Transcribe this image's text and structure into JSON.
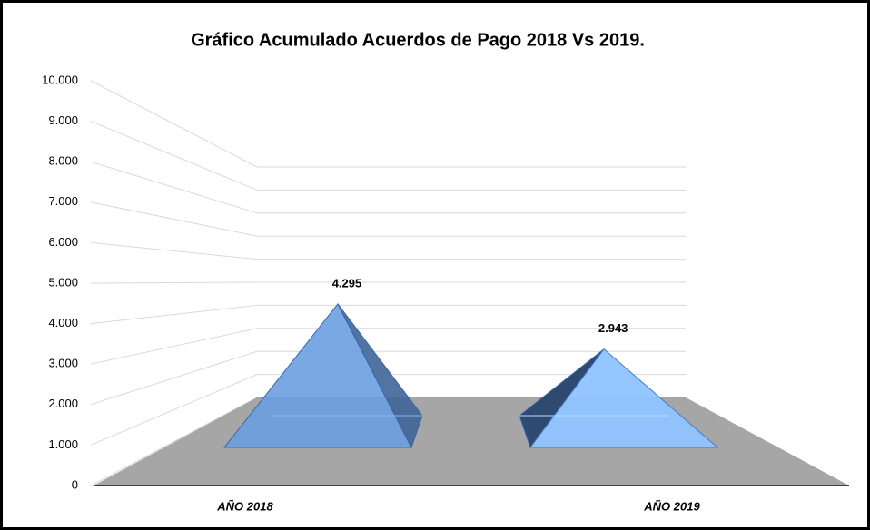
{
  "chart_data": {
    "type": "pyramid3d",
    "title": "Gráfico Acumulado Acuerdos de Pago 2018 Vs 2019.",
    "categories": [
      "AÑO 2018",
      "AÑO 2019"
    ],
    "values": [
      4295,
      2943
    ],
    "value_labels": [
      "4.295",
      "2.943"
    ],
    "colors": [
      "#6a9ee0",
      "#8fc3ff"
    ],
    "ylim": [
      0,
      10000
    ],
    "yticks": [
      0,
      {
        "value": 1000,
        "label": "1.000"
      },
      {
        "value": 2000,
        "label": "2.000"
      },
      {
        "value": 3000,
        "label": "3.000"
      },
      {
        "value": 4000,
        "label": "4.000"
      },
      {
        "value": 5000,
        "label": "5.000"
      },
      {
        "value": 6000,
        "label": "6.000"
      },
      {
        "value": 7000,
        "label": "7.000"
      },
      {
        "value": 8000,
        "label": "8.000"
      },
      {
        "value": 9000,
        "label": "9.000"
      },
      {
        "value": 10000,
        "label": "10.000"
      }
    ],
    "grid": true
  }
}
